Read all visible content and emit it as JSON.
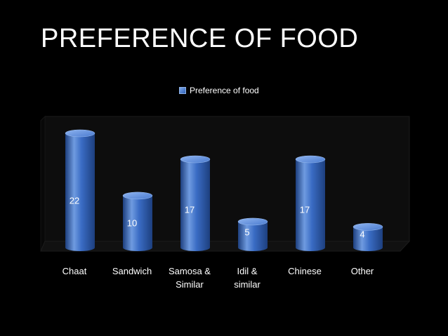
{
  "slide": {
    "title": "PREFERENCE OF FOOD"
  },
  "colors": {
    "background": "#000000",
    "bar_light": "#6f9be0",
    "bar_mid": "#3a6cc4",
    "bar_dark": "#1d3f7e",
    "plot_wall": "#0d0d0d"
  },
  "chart_data": {
    "type": "bar",
    "style": "3d-cylinder",
    "categories": [
      "Chaat",
      "Sandwich",
      "Samosa & Similar",
      "Idil & similar",
      "Chinese",
      "Other"
    ],
    "category_lines": [
      [
        "Chaat"
      ],
      [
        "Sandwich"
      ],
      [
        "Samosa &",
        "Similar"
      ],
      [
        "Idil  &",
        "similar"
      ],
      [
        "Chinese"
      ],
      [
        "Other"
      ]
    ],
    "series": [
      {
        "name": "Preference of food",
        "values": [
          22,
          10,
          17,
          5,
          17,
          4
        ]
      }
    ],
    "data_labels": [
      "22",
      "10",
      "17",
      "5",
      "17",
      "4"
    ],
    "legend": {
      "position": "top",
      "entries": [
        "Preference of food"
      ]
    },
    "ylim": [
      0,
      22
    ],
    "grid": false,
    "xlabel": "",
    "ylabel": ""
  }
}
